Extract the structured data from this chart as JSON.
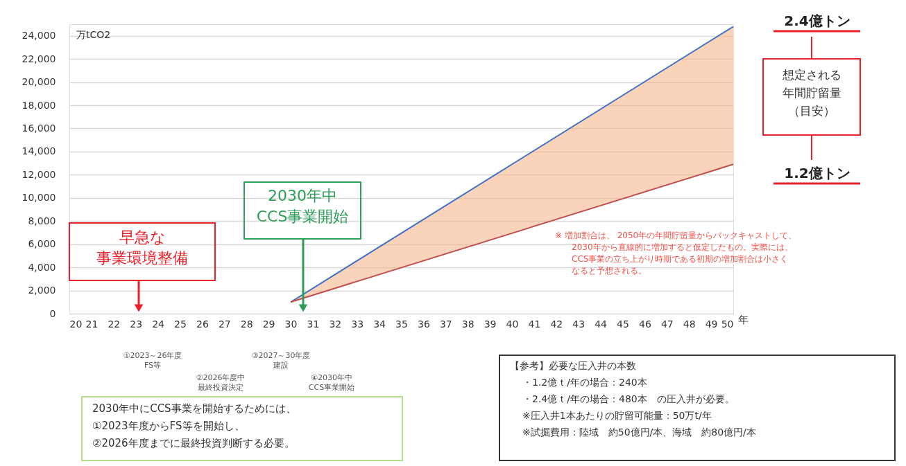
{
  "chart_data": {
    "type": "line",
    "xlabel": "年",
    "ylabel": "万tCO2",
    "xlim": [
      20,
      50
    ],
    "xticks": [
      20,
      21,
      22,
      23,
      24,
      25,
      26,
      27,
      28,
      29,
      30,
      31,
      32,
      33,
      34,
      35,
      36,
      37,
      38,
      39,
      40,
      41,
      42,
      43,
      44,
      45,
      46,
      47,
      48,
      49,
      50
    ],
    "ylim": [
      0,
      25000
    ],
    "yticks": [
      0,
      {
        "value": 2000,
        "label": "2,000"
      },
      {
        "value": 4000,
        "label": "4,000"
      },
      {
        "value": 6000,
        "label": "6,000"
      },
      {
        "value": 8000,
        "label": "8,000"
      },
      {
        "value": 10000,
        "label": "10,000"
      },
      {
        "value": 12000,
        "label": "12,000"
      },
      {
        "value": 14000,
        "label": "14,000"
      },
      {
        "value": 16000,
        "label": "16,000"
      },
      {
        "value": 18000,
        "label": "18,000"
      },
      {
        "value": 20000,
        "label": "20,000"
      },
      {
        "value": 22000,
        "label": "22,000"
      },
      {
        "value": 24000,
        "label": "24,000"
      }
    ],
    "grid": "y",
    "marker": "none",
    "line_style": "solid",
    "x": [
      30,
      50
    ],
    "series": [
      {
        "color": "#4472c4",
        "values": [
          1000,
          24800
        ]
      },
      {
        "color": "#c0504d",
        "values": [
          1000,
          12900
        ],
        "lower": [
          1000,
          12900
        ],
        "upper": [
          1000,
          24800
        ]
      }
    ],
    "annotations": [
      "早急な事業環境整備",
      "2030年中CCS事業開始",
      "2.4億トン",
      "想定される年間貯留量（目安）",
      "1.2億トン",
      "※ 増加割合は、 2050年の年間貯留量からバックキャストして、2030年から直線的に増加すると仮定したもの。実際には、CCS事業の立ち上がり時期である初期の増加割合は小さくなると予想される。",
      "①2023～26年度FS等",
      "②2026年度中最終投資決定",
      "③2027～30年度建設",
      "④2030年中CCS事業開始",
      "2030年中にCCS事業を開始するためには、①2023年度からFS等を開始し、②2026年度までに最終投資判断する必要。",
      "【参考】必要な圧入井の本数・1.2億ｔ/年の場合：240本・2.4億ｔ/年の場合：480本　の圧入井が必要。※圧入井1本あたりの貯留可能量：50万t/年※試掘費用：陸域　約50億円/本、海域　約80億円/本"
    ]
  }
}
